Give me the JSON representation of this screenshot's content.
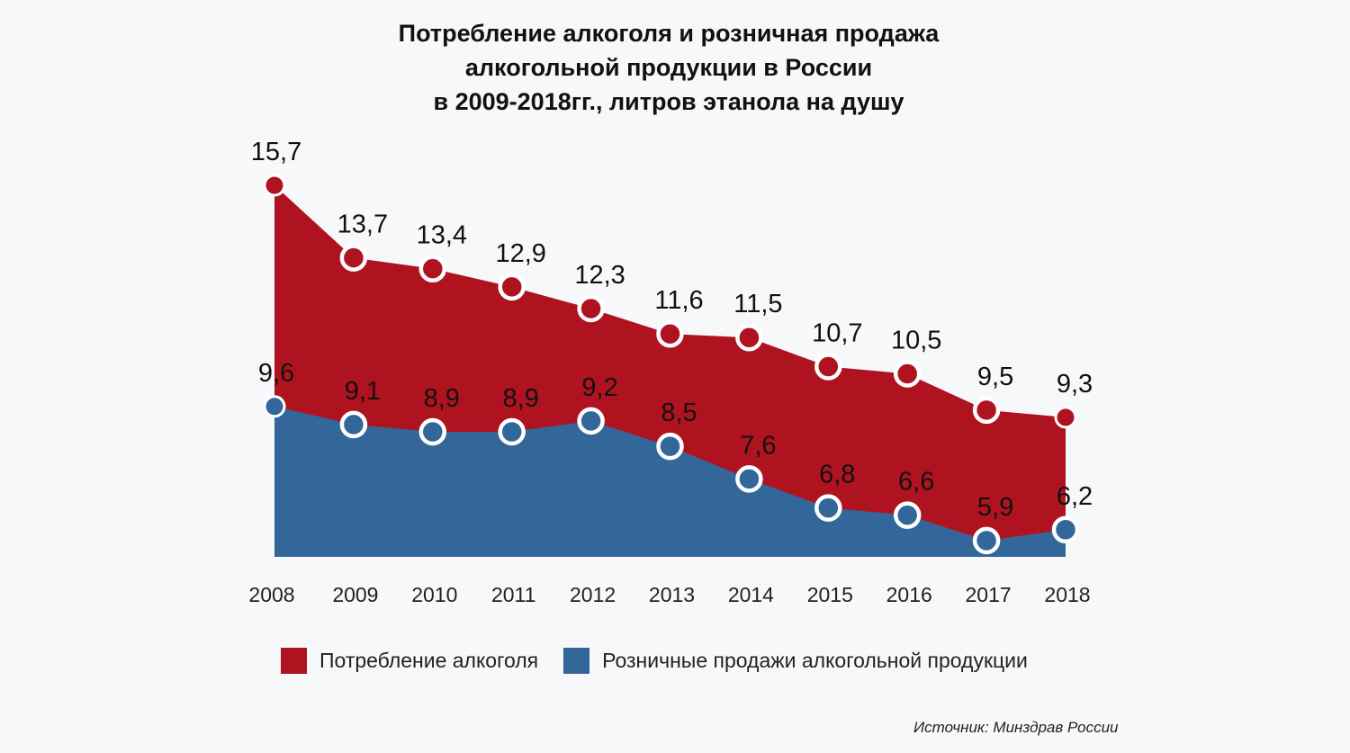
{
  "chart_data": {
    "type": "area",
    "title": [
      "Потребление алкоголя и розничная продажа",
      "алкогольной продукции в России",
      "в 2009-2018гг., литров этанола на душу"
    ],
    "xlabel": "",
    "ylabel": "",
    "categories": [
      "2008",
      "2009",
      "2010",
      "2011",
      "2012",
      "2013",
      "2014",
      "2015",
      "2016",
      "2017",
      "2018"
    ],
    "ylim": [
      5.45,
      15.7
    ],
    "grid": false,
    "legend_position": "bottom",
    "series": [
      {
        "name": "Потребление алкоголя",
        "color": "#b01320",
        "values": [
          15.7,
          13.7,
          13.4,
          12.9,
          12.3,
          11.6,
          11.5,
          10.7,
          10.5,
          9.5,
          9.3
        ],
        "labels": [
          "15,7",
          "13,7",
          "13,4",
          "12,9",
          "12,3",
          "11,6",
          "11,5",
          "10,7",
          "10,5",
          "9,5",
          "9,3"
        ]
      },
      {
        "name": "Розничные продажи алкогольной продукции",
        "color": "#33679a",
        "values": [
          9.6,
          9.1,
          8.9,
          8.9,
          9.2,
          8.5,
          7.6,
          6.8,
          6.6,
          5.9,
          6.2
        ],
        "labels": [
          "9,6",
          "9,1",
          "8,9",
          "8,9",
          "9,2",
          "8,5",
          "7,6",
          "6,8",
          "6,6",
          "5,9",
          "6,2"
        ]
      }
    ],
    "source": "Источник: Минздрав России"
  }
}
